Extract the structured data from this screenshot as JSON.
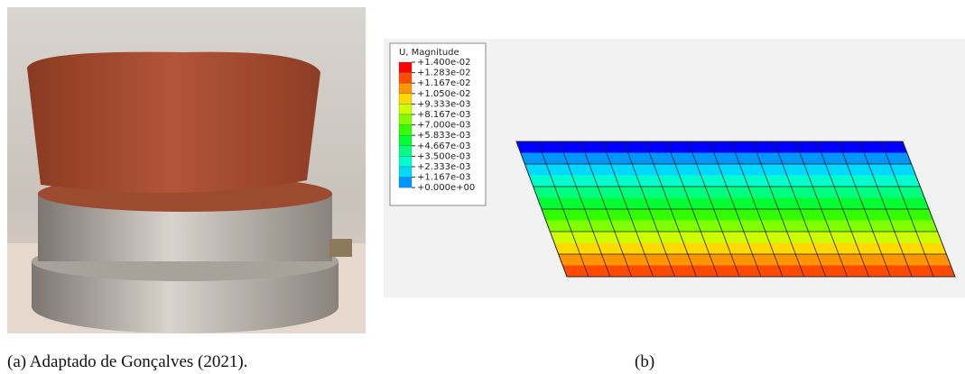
{
  "figure": {
    "caption_a": "(a) Adaptado de Gonçalves (2021).",
    "caption_b": "(b)",
    "legend": {
      "title": "U, Magnitude",
      "labels": [
        "+1.400e-02",
        "+1.283e-02",
        "+1.167e-02",
        "+1.050e-02",
        "+9.333e-03",
        "+8.167e-03",
        "+7.000e-03",
        "+5.833e-03",
        "+4.667e-03",
        "+3.500e-03",
        "+2.333e-03",
        "+1.167e-03",
        "+0.000e+00"
      ],
      "colors": [
        "#ff0000",
        "#ff4a00",
        "#ff9500",
        "#ffd900",
        "#ccff00",
        "#80ff00",
        "#33ff00",
        "#00ff33",
        "#00ff80",
        "#00ffcc",
        "#00d9ff",
        "#0095ff",
        "#0000ff"
      ]
    }
  }
}
